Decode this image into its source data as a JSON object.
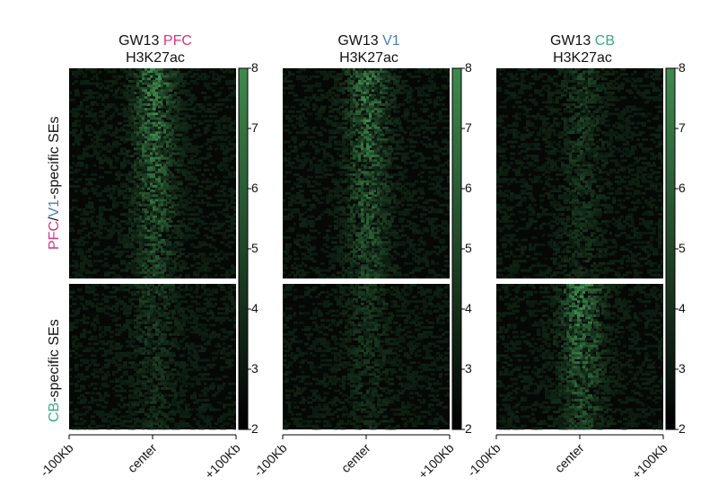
{
  "chart_data": {
    "type": "heatmap",
    "panels": [
      {
        "title_prefix": "GW13 ",
        "title_highlight": "PFC",
        "highlight_color": "#d6337f",
        "mark": "H3K27ac"
      },
      {
        "title_prefix": "GW13 ",
        "title_highlight": "V1",
        "highlight_color": "#4a7db8",
        "mark": "H3K27ac"
      },
      {
        "title_prefix": "GW13 ",
        "title_highlight": "CB",
        "highlight_color": "#3aaa86",
        "mark": "H3K27ac"
      }
    ],
    "row_groups": [
      {
        "label_parts": [
          {
            "text": "PFC",
            "color": "#d6337f"
          },
          {
            "text": "/",
            "color": "#111111"
          },
          {
            "text": "V1",
            "color": "#4a7db8"
          },
          {
            "text": "-specific SEs",
            "color": "#111111"
          }
        ],
        "row_count": 90,
        "signal_strength_per_panel": [
          1.0,
          0.95,
          0.35
        ]
      },
      {
        "label_parts": [
          {
            "text": "CB",
            "color": "#3aaa86"
          },
          {
            "text": "-specific SEs",
            "color": "#111111"
          }
        ],
        "row_count": 62,
        "signal_strength_per_panel": [
          0.35,
          0.3,
          1.0
        ]
      }
    ],
    "x_tick_labels": [
      "-100Kb",
      "center",
      "+100Kb"
    ],
    "colorbar": {
      "min": 2,
      "max": 8,
      "ticks": [
        2,
        3,
        4,
        5,
        6,
        7,
        8
      ],
      "color_low": "#000000",
      "color_high": "#3f8a4e"
    }
  }
}
